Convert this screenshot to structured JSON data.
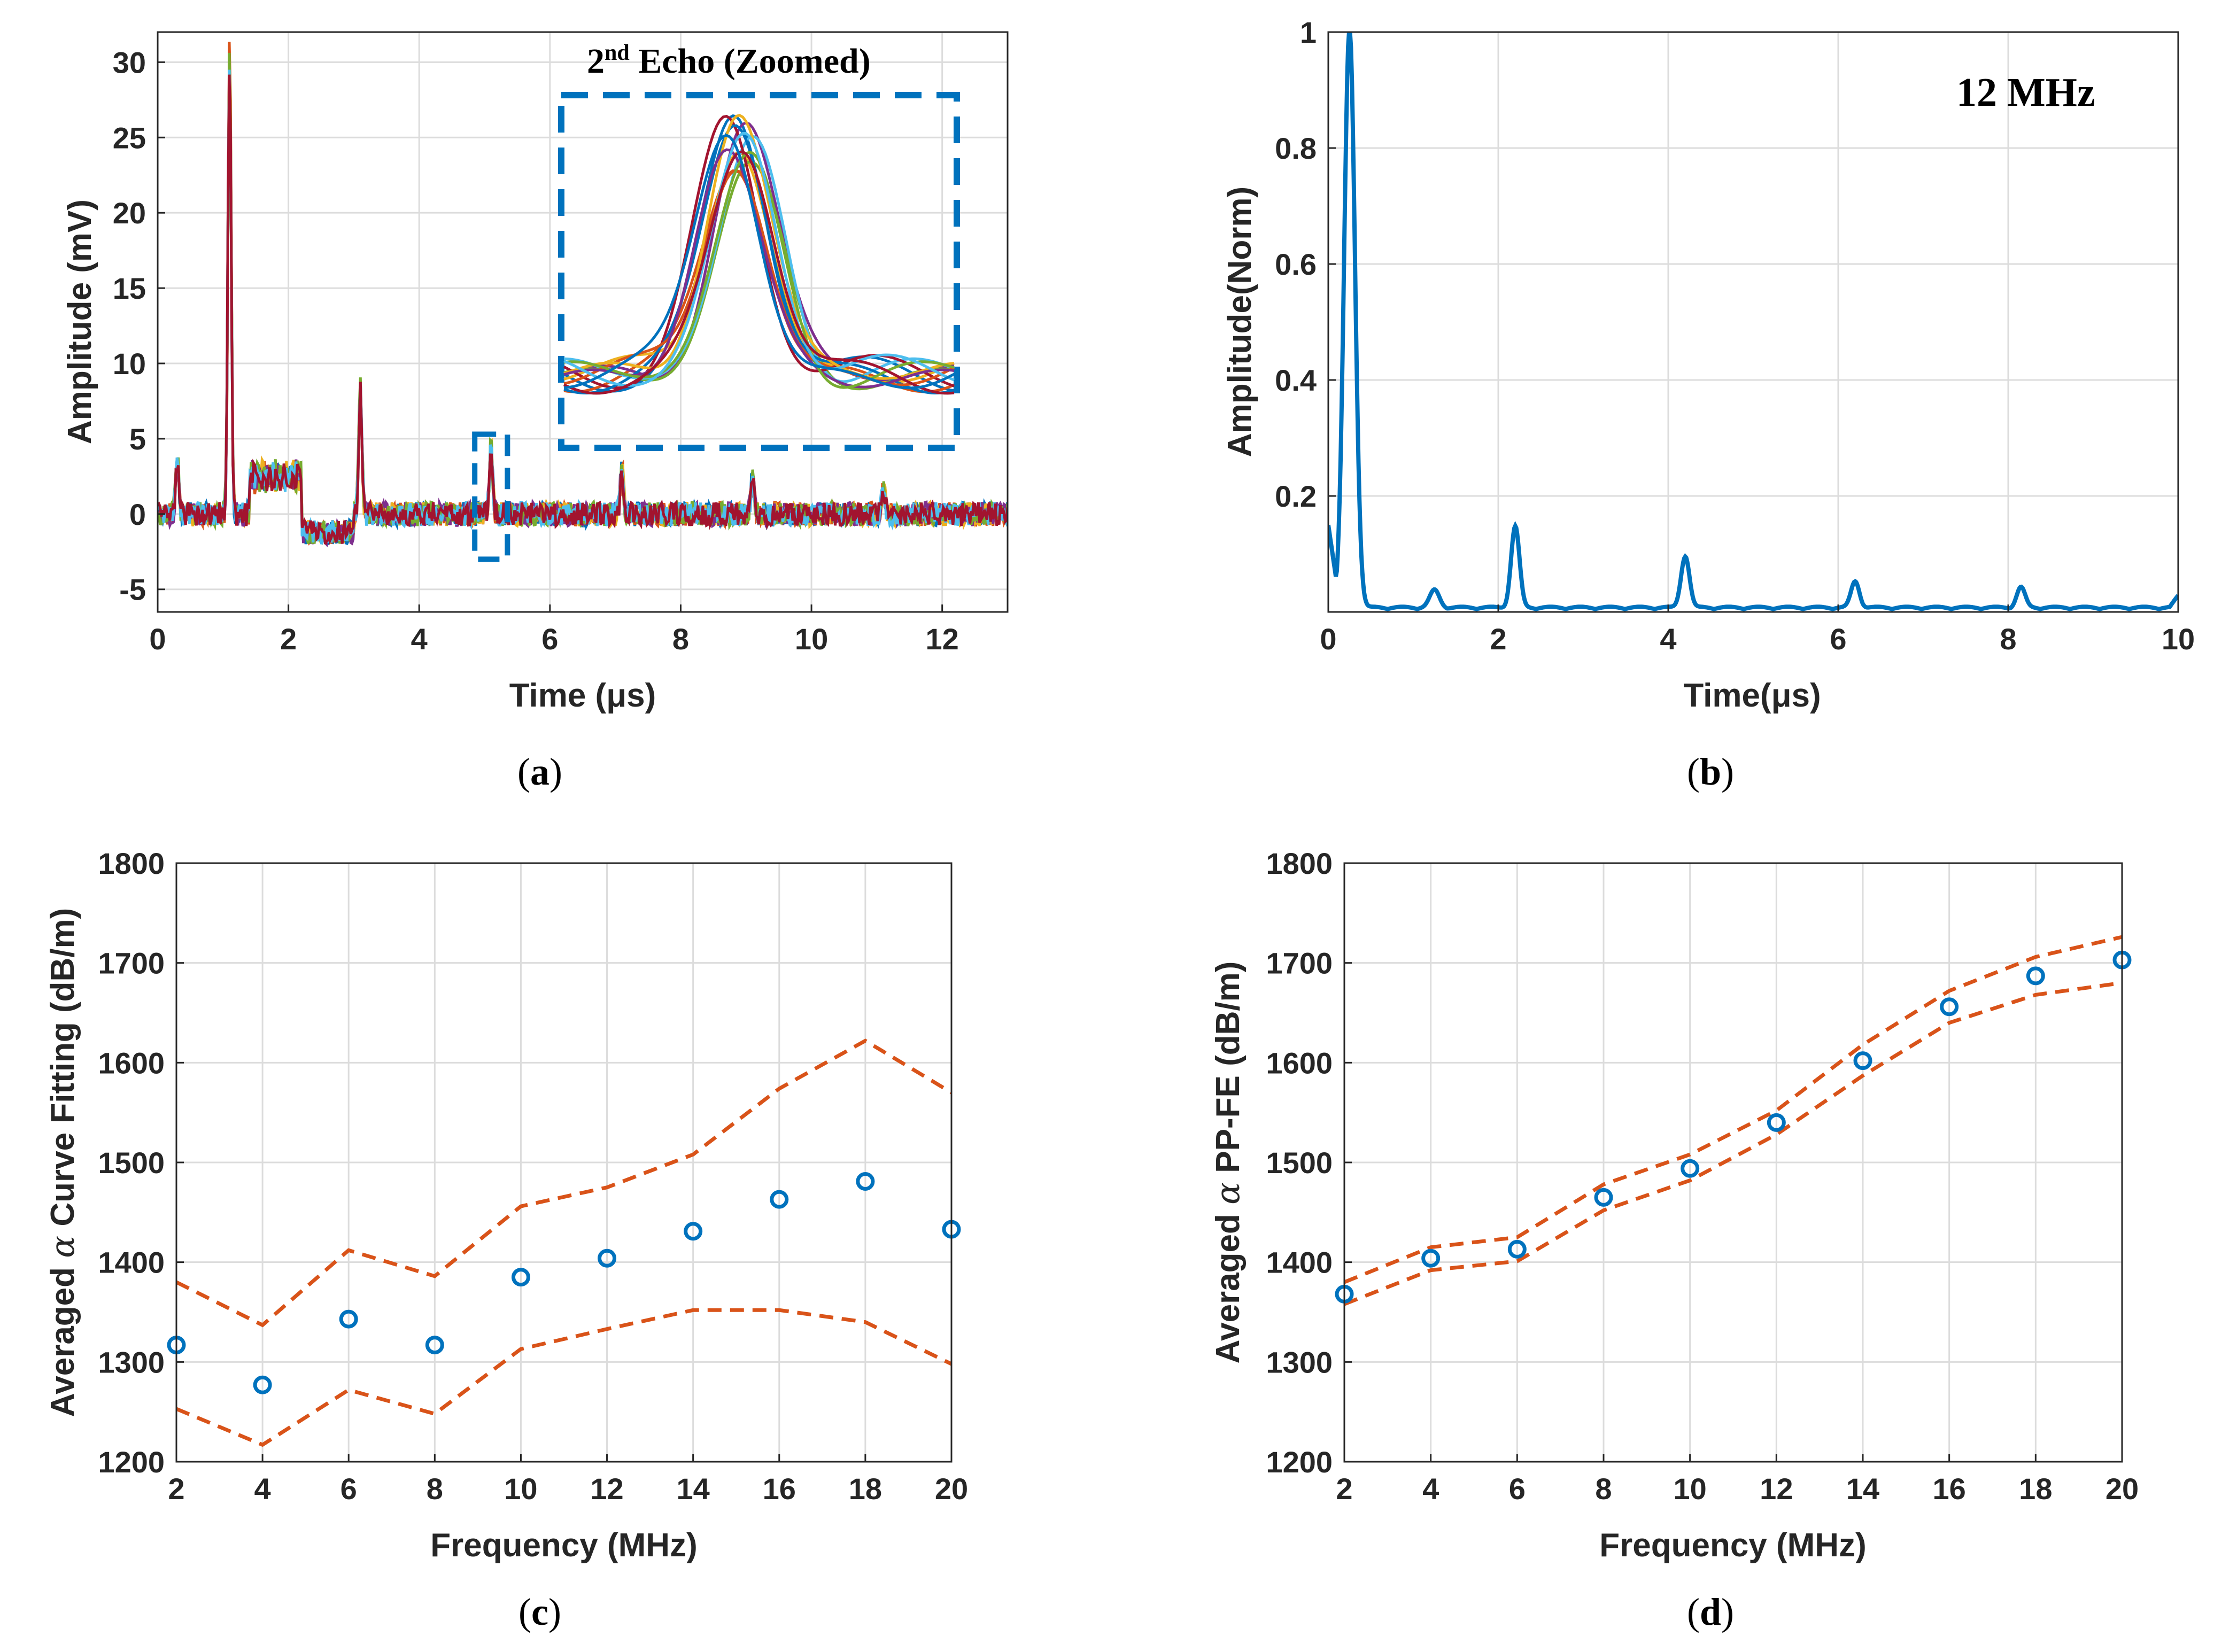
{
  "chart_data": [
    {
      "id": "a",
      "type": "line",
      "caption": "a",
      "xlabel": "Time (μs)",
      "ylabel": "Amplitude (mV)",
      "xlim": [
        0,
        13
      ],
      "ylim": [
        -6.5,
        32
      ],
      "xticks": [
        0,
        2,
        4,
        6,
        8,
        10,
        12
      ],
      "yticks": [
        -5,
        0,
        5,
        10,
        15,
        20,
        25,
        30
      ],
      "annotation": {
        "text": "Echo (Zoomed)",
        "ordinal": "2",
        "superscript": "nd"
      },
      "zoom_box": {
        "x": [
          4.85,
          5.35
        ],
        "y": [
          -3,
          5.3
        ]
      },
      "series_colors": [
        "#0072BD",
        "#D95319",
        "#EDB120",
        "#7E2F8E",
        "#77AC30",
        "#4DBEEE",
        "#A2142F"
      ],
      "echo_peaks": [
        {
          "t": 0.3,
          "amp": 3.5
        },
        {
          "t": 1.1,
          "amp": 30.5
        },
        {
          "t": 3.1,
          "amp": 8.5
        },
        {
          "t": 5.1,
          "amp": 4.5
        },
        {
          "t": 7.1,
          "amp": 3.2
        },
        {
          "t": 9.1,
          "amp": 2.5
        },
        {
          "t": 11.1,
          "amp": 1.8
        }
      ],
      "baseline_plateau": {
        "t_start": 1.4,
        "t_end": 2.2,
        "level": 2.5
      }
    },
    {
      "id": "b",
      "type": "line",
      "caption": "b",
      "xlabel": "Time(μs)",
      "ylabel": "Amplitude(Norm)",
      "xlim": [
        0,
        10
      ],
      "ylim": [
        0,
        1
      ],
      "xticks": [
        0,
        2,
        4,
        6,
        8,
        10
      ],
      "yticks": [
        0.2,
        0.4,
        0.6,
        0.8,
        1
      ],
      "annotation": "12 MHz",
      "color": "#0072BD",
      "peaks": [
        {
          "t": 0.25,
          "amp": 1.0,
          "width": 0.09
        },
        {
          "t": 1.25,
          "amp": 0.03,
          "width": 0.08
        },
        {
          "t": 2.2,
          "amp": 0.14,
          "width": 0.07
        },
        {
          "t": 4.2,
          "amp": 0.09,
          "width": 0.07
        },
        {
          "t": 6.2,
          "amp": 0.045,
          "width": 0.07
        },
        {
          "t": 8.15,
          "amp": 0.035,
          "width": 0.07
        }
      ],
      "floor": 0.005
    },
    {
      "id": "c",
      "type": "scatter",
      "caption": "c",
      "xlabel": "Frequency (MHz)",
      "ylabel_prefix": "Averaged",
      "ylabel_symbol": "α",
      "ylabel_suffix": "Curve Fitting (dB/m)",
      "xlim": [
        2,
        20
      ],
      "ylim": [
        1200,
        1800
      ],
      "xticks": [
        2,
        4,
        6,
        8,
        10,
        12,
        14,
        16,
        18,
        20
      ],
      "yticks": [
        1200,
        1300,
        1400,
        1500,
        1600,
        1700,
        1800
      ],
      "x": [
        2,
        4,
        6,
        8,
        10,
        12,
        14,
        16,
        18,
        20
      ],
      "mean": [
        1317,
        1277,
        1343,
        1317,
        1385,
        1404,
        1431,
        1463,
        1481,
        1433
      ],
      "upper": [
        1380,
        1337,
        1412,
        1386,
        1456,
        1475,
        1508,
        1574,
        1622,
        1570
      ],
      "lower": [
        1253,
        1217,
        1272,
        1248,
        1313,
        1333,
        1352,
        1352,
        1340,
        1298
      ],
      "marker_color": "#0072BD",
      "band_color": "#D95319"
    },
    {
      "id": "d",
      "type": "scatter",
      "caption": "d",
      "xlabel": "Frequency (MHz)",
      "ylabel_prefix": "Averaged",
      "ylabel_symbol": "α",
      "ylabel_suffix": "PP-FE (dB/m)",
      "xlim": [
        2,
        20
      ],
      "ylim": [
        1200,
        1800
      ],
      "xticks": [
        2,
        4,
        6,
        8,
        10,
        12,
        14,
        16,
        18,
        20
      ],
      "yticks": [
        1200,
        1300,
        1400,
        1500,
        1600,
        1700,
        1800
      ],
      "x": [
        2,
        4,
        6,
        8,
        10,
        12,
        14,
        16,
        18,
        20
      ],
      "mean": [
        1368,
        1404,
        1413,
        1465,
        1494,
        1540,
        1602,
        1656,
        1687,
        1703
      ],
      "upper": [
        1380,
        1415,
        1425,
        1478,
        1508,
        1552,
        1618,
        1672,
        1706,
        1726
      ],
      "lower": [
        1358,
        1392,
        1401,
        1452,
        1482,
        1528,
        1587,
        1640,
        1668,
        1680
      ],
      "marker_color": "#0072BD",
      "band_color": "#D95319"
    }
  ]
}
